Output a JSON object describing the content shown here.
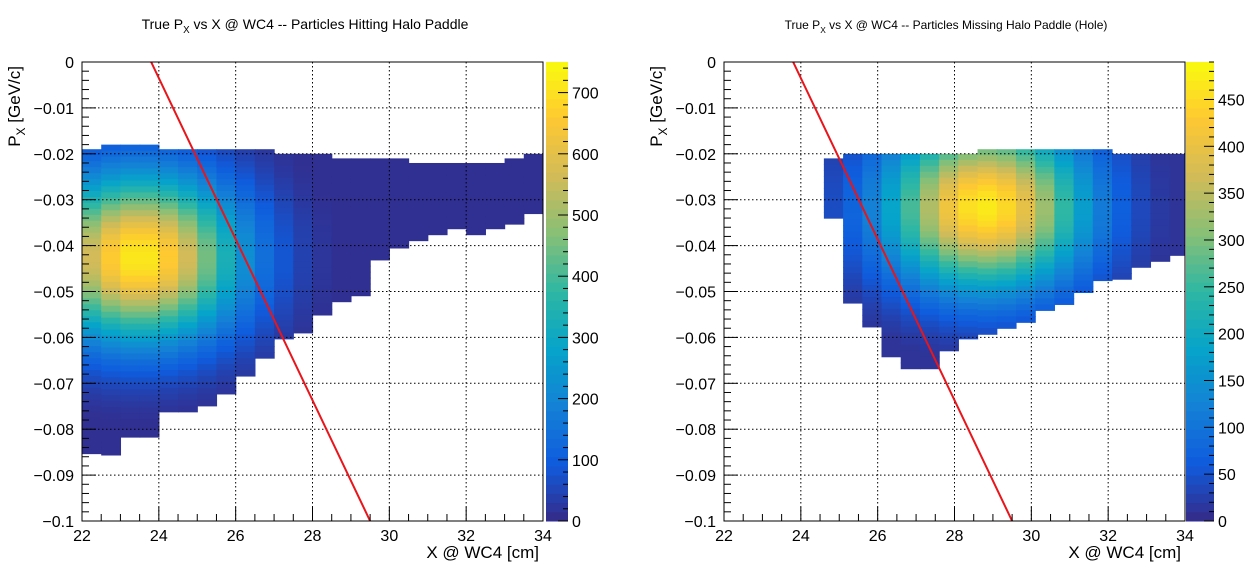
{
  "chart_data": [
    {
      "type": "heatmap",
      "title": "True P",
      "title_sub": "X",
      "title_rest": " vs X @ WC4 -- Particles Hitting Halo Paddle",
      "xlabel": "X @ WC4 [cm]",
      "ylabel": "P",
      "ylabel_sub": "X",
      "ylabel_rest": " [GeV/c]",
      "xlim": [
        22,
        34
      ],
      "ylim": [
        -0.1,
        0
      ],
      "grid": true,
      "x_ticks": [
        22,
        24,
        26,
        28,
        30,
        32,
        34
      ],
      "x_tick_labels": [
        "22",
        "24",
        "26",
        "28",
        "30",
        "32",
        "34"
      ],
      "y_ticks": [
        0,
        -0.01,
        -0.02,
        -0.03,
        -0.04,
        -0.05,
        -0.06,
        -0.07,
        -0.08,
        -0.09,
        -0.1
      ],
      "y_tick_labels": [
        "0",
        "−0.01",
        "−0.02",
        "−0.03",
        "−0.04",
        "−0.05",
        "−0.06",
        "−0.07",
        "−0.08",
        "−0.09",
        "−0.1"
      ],
      "colorbar": {
        "min": 0,
        "max": 750,
        "ticks": [
          0,
          100,
          200,
          300,
          400,
          500,
          600,
          700
        ],
        "tick_labels": [
          "0",
          "100",
          "200",
          "300",
          "400",
          "500",
          "600",
          "700"
        ]
      },
      "line": {
        "color": "#e8151b",
        "x": [
          23.8,
          29.5
        ],
        "y": [
          0.0,
          -0.1
        ]
      },
      "blob": {
        "cx": 23.5,
        "cy": -0.042,
        "peak": 720
      },
      "heatmap_columns": [
        {
          "x0": 22.0,
          "x1": 22.5,
          "ytop": -0.019,
          "ybot": -0.084
        },
        {
          "x0": 22.5,
          "x1": 23.0,
          "ytop": -0.018,
          "ybot": -0.085
        },
        {
          "x0": 23.0,
          "x1": 23.5,
          "ytop": -0.018,
          "ybot": -0.081
        },
        {
          "x0": 23.5,
          "x1": 24.0,
          "ytop": -0.018,
          "ybot": -0.081
        },
        {
          "x0": 24.0,
          "x1": 24.5,
          "ytop": -0.019,
          "ybot": -0.075
        },
        {
          "x0": 24.5,
          "x1": 25.0,
          "ytop": -0.019,
          "ybot": -0.075
        },
        {
          "x0": 25.0,
          "x1": 25.5,
          "ytop": -0.019,
          "ybot": -0.074
        },
        {
          "x0": 25.5,
          "x1": 26.0,
          "ytop": -0.019,
          "ybot": -0.071
        },
        {
          "x0": 26.0,
          "x1": 26.5,
          "ytop": -0.019,
          "ybot": -0.068
        },
        {
          "x0": 26.5,
          "x1": 27.0,
          "ytop": -0.019,
          "ybot": -0.064
        },
        {
          "x0": 27.0,
          "x1": 27.5,
          "ytop": -0.02,
          "ybot": -0.06
        },
        {
          "x0": 27.5,
          "x1": 28.0,
          "ytop": -0.02,
          "ybot": -0.058
        },
        {
          "x0": 28.0,
          "x1": 28.5,
          "ytop": -0.02,
          "ybot": -0.055
        },
        {
          "x0": 28.5,
          "x1": 29.0,
          "ytop": -0.021,
          "ybot": -0.051
        },
        {
          "x0": 29.0,
          "x1": 29.5,
          "ytop": -0.021,
          "ybot": -0.05
        },
        {
          "x0": 29.5,
          "x1": 30.0,
          "ytop": -0.021,
          "ybot": -0.043
        },
        {
          "x0": 30.0,
          "x1": 30.5,
          "ytop": -0.021,
          "ybot": -0.04
        },
        {
          "x0": 30.5,
          "x1": 31.0,
          "ytop": -0.022,
          "ybot": -0.038
        },
        {
          "x0": 31.0,
          "x1": 31.5,
          "ytop": -0.022,
          "ybot": -0.037
        },
        {
          "x0": 31.5,
          "x1": 32.0,
          "ytop": -0.022,
          "ybot": -0.036
        },
        {
          "x0": 32.0,
          "x1": 32.5,
          "ytop": -0.022,
          "ybot": -0.037
        },
        {
          "x0": 32.5,
          "x1": 33.0,
          "ytop": -0.022,
          "ybot": -0.035
        },
        {
          "x0": 33.0,
          "x1": 33.5,
          "ytop": -0.021,
          "ybot": -0.034
        },
        {
          "x0": 33.5,
          "x1": 34.0,
          "ytop": -0.02,
          "ybot": -0.032
        }
      ]
    },
    {
      "type": "heatmap",
      "title": "True P",
      "title_sub": "X",
      "title_rest": " vs X @ WC4 -- Particles Missing Halo Paddle (Hole)",
      "xlabel": "X @ WC4 [cm]",
      "ylabel": "P",
      "ylabel_sub": "X",
      "ylabel_rest": " [GeV/c]",
      "xlim": [
        22,
        34
      ],
      "ylim": [
        -0.1,
        0
      ],
      "grid": true,
      "x_ticks": [
        22,
        24,
        26,
        28,
        30,
        32,
        34
      ],
      "x_tick_labels": [
        "22",
        "24",
        "26",
        "28",
        "30",
        "32",
        "34"
      ],
      "y_ticks": [
        0,
        -0.01,
        -0.02,
        -0.03,
        -0.04,
        -0.05,
        -0.06,
        -0.07,
        -0.08,
        -0.09,
        -0.1
      ],
      "y_tick_labels": [
        "0",
        "−0.01",
        "−0.02",
        "−0.03",
        "−0.04",
        "−0.05",
        "−0.06",
        "−0.07",
        "−0.08",
        "−0.09",
        "−0.1"
      ],
      "colorbar": {
        "min": 0,
        "max": 490,
        "ticks": [
          0,
          50,
          100,
          150,
          200,
          250,
          300,
          350,
          400,
          450
        ],
        "tick_labels": [
          "0",
          "50",
          "100",
          "150",
          "200",
          "250",
          "300",
          "350",
          "400",
          "450"
        ]
      },
      "line": {
        "color": "#e8151b",
        "x": [
          23.8,
          29.5
        ],
        "y": [
          0.0,
          -0.1
        ]
      },
      "blob": {
        "cx": 28.8,
        "cy": -0.031,
        "peak": 470
      },
      "heatmap_columns": [
        {
          "x0": 24.6,
          "x1": 25.1,
          "ytop": -0.021,
          "ybot": -0.033
        },
        {
          "x0": 25.1,
          "x1": 25.6,
          "ytop": -0.02,
          "ybot": -0.052
        },
        {
          "x0": 25.6,
          "x1": 26.1,
          "ytop": -0.02,
          "ybot": -0.057
        },
        {
          "x0": 26.1,
          "x1": 26.6,
          "ytop": -0.02,
          "ybot": -0.063
        },
        {
          "x0": 26.6,
          "x1": 27.1,
          "ytop": -0.02,
          "ybot": -0.066
        },
        {
          "x0": 27.1,
          "x1": 27.6,
          "ytop": -0.02,
          "ybot": -0.066
        },
        {
          "x0": 27.6,
          "x1": 28.1,
          "ytop": -0.02,
          "ybot": -0.062
        },
        {
          "x0": 28.1,
          "x1": 28.6,
          "ytop": -0.02,
          "ybot": -0.06
        },
        {
          "x0": 28.6,
          "x1": 29.1,
          "ytop": -0.019,
          "ybot": -0.059
        },
        {
          "x0": 29.1,
          "x1": 29.6,
          "ytop": -0.019,
          "ybot": -0.057
        },
        {
          "x0": 29.6,
          "x1": 30.1,
          "ytop": -0.019,
          "ybot": -0.056
        },
        {
          "x0": 30.1,
          "x1": 30.6,
          "ytop": -0.019,
          "ybot": -0.054
        },
        {
          "x0": 30.6,
          "x1": 31.1,
          "ytop": -0.019,
          "ybot": -0.052
        },
        {
          "x0": 31.1,
          "x1": 31.6,
          "ytop": -0.019,
          "ybot": -0.05
        },
        {
          "x0": 31.6,
          "x1": 32.1,
          "ytop": -0.019,
          "ybot": -0.047
        },
        {
          "x0": 32.1,
          "x1": 32.6,
          "ytop": -0.02,
          "ybot": -0.046
        },
        {
          "x0": 32.6,
          "x1": 33.1,
          "ytop": -0.02,
          "ybot": -0.044
        },
        {
          "x0": 33.1,
          "x1": 33.6,
          "ytop": -0.02,
          "ybot": -0.043
        },
        {
          "x0": 33.6,
          "x1": 34.0,
          "ytop": -0.02,
          "ybot": -0.041
        }
      ]
    }
  ]
}
